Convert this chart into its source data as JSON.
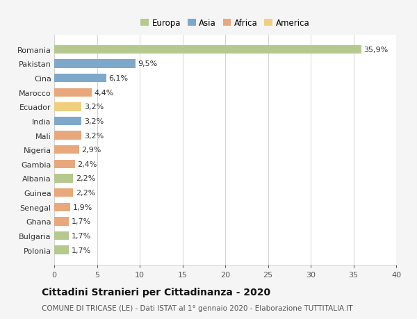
{
  "countries": [
    "Romania",
    "Pakistan",
    "Cina",
    "Marocco",
    "Ecuador",
    "India",
    "Mali",
    "Nigeria",
    "Gambia",
    "Albania",
    "Guinea",
    "Senegal",
    "Ghana",
    "Bulgaria",
    "Polonia"
  ],
  "values": [
    35.9,
    9.5,
    6.1,
    4.4,
    3.2,
    3.2,
    3.2,
    2.9,
    2.4,
    2.2,
    2.2,
    1.9,
    1.7,
    1.7,
    1.7
  ],
  "continents": [
    "Europa",
    "Asia",
    "Asia",
    "Africa",
    "America",
    "Asia",
    "Africa",
    "Africa",
    "Africa",
    "Europa",
    "Africa",
    "Africa",
    "Africa",
    "Europa",
    "Europa"
  ],
  "colors": {
    "Europa": "#b5c98e",
    "Asia": "#7ea8c9",
    "Africa": "#e8a87c",
    "America": "#f0d080"
  },
  "xlim": [
    0,
    40
  ],
  "xticks": [
    0,
    5,
    10,
    15,
    20,
    25,
    30,
    35,
    40
  ],
  "title": "Cittadini Stranieri per Cittadinanza - 2020",
  "subtitle": "COMUNE DI TRICASE (LE) - Dati ISTAT al 1° gennaio 2020 - Elaborazione TUTTITALIA.IT",
  "background_color": "#f5f5f5",
  "bar_background_color": "#ffffff",
  "grid_color": "#cccccc",
  "label_fontsize": 8,
  "ytick_fontsize": 8,
  "xtick_fontsize": 8,
  "title_fontsize": 10,
  "subtitle_fontsize": 7.5,
  "legend_fontsize": 8.5
}
